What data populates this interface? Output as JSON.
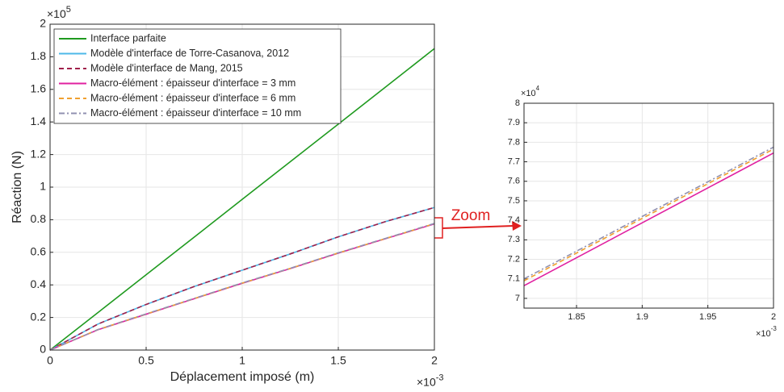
{
  "chart_data": [
    {
      "type": "line",
      "y_label": "Réaction (N)",
      "x_label": "Déplacement imposé (m)",
      "y_exponent_label": {
        "base": "×10",
        "power": "5"
      },
      "x_exponent_label": {
        "base": "×10",
        "power": "-3"
      },
      "annotation": "Zoom",
      "grid": true,
      "legend": "upper left",
      "xlim": [
        0,
        0.002
      ],
      "ylim": [
        0,
        200000
      ],
      "xticks": [
        0,
        {
          "value": 0.0005,
          "label": "0.5"
        },
        {
          "value": 0.001,
          "label": "1"
        },
        {
          "value": 0.0015,
          "label": "1.5"
        },
        {
          "value": 0.002,
          "label": "2"
        }
      ],
      "yticks": [
        0,
        {
          "value": 20000,
          "label": "0.2"
        },
        {
          "value": 40000,
          "label": "0.4"
        },
        {
          "value": 60000,
          "label": "0.6"
        },
        {
          "value": 80000,
          "label": "0.8"
        },
        {
          "value": 100000,
          "label": "1"
        },
        {
          "value": 120000,
          "label": "1.2"
        },
        {
          "value": 140000,
          "label": "1.4"
        },
        {
          "value": 160000,
          "label": "1.6"
        },
        {
          "value": 180000,
          "label": "1.8"
        },
        {
          "value": 200000,
          "label": "2"
        }
      ],
      "x": [
        0,
        0.00025,
        0.0005,
        0.00075,
        0.001,
        0.00125,
        0.0015,
        0.00175,
        0.002
      ],
      "series": [
        {
          "name": "Interface parfaite",
          "color": "#1f9a1f",
          "style": "solid",
          "values": [
            0,
            23100,
            46200,
            69300,
            92500,
            115600,
            138700,
            161800,
            185000
          ]
        },
        {
          "name": "Modèle d'interface de Torre-Casanova, 2012",
          "color": "#4db8e8",
          "style": "solid",
          "values": [
            0,
            16000,
            28000,
            39000,
            49000,
            59000,
            69500,
            79000,
            87500
          ]
        },
        {
          "name": "Modèle d'interface de Mang, 2015",
          "color": "#a0204a",
          "style": "dashed",
          "values": [
            0,
            16000,
            28000,
            39000,
            49000,
            59000,
            69500,
            79000,
            87500
          ]
        },
        {
          "name": "Macro-élément : épaisseur d'interface = 3 mm",
          "color": "#e020a0",
          "style": "solid",
          "values": [
            0,
            12500,
            22000,
            31500,
            41000,
            50000,
            59500,
            68500,
            77400
          ]
        },
        {
          "name": "Macro-élément : épaisseur d'interface = 6 mm",
          "color": "#f0a030",
          "style": "dashed",
          "values": [
            0,
            12600,
            22100,
            31600,
            41100,
            50100,
            59600,
            68600,
            77600
          ]
        },
        {
          "name": "Macro-élément : épaisseur d'interface = 10 mm",
          "color": "#9090b0",
          "style": "dashdot",
          "values": [
            0,
            12600,
            22200,
            31700,
            41200,
            50200,
            59700,
            68700,
            77700
          ]
        }
      ]
    },
    {
      "type": "line",
      "y_exponent_label": {
        "base": "×10",
        "power": "4"
      },
      "x_exponent_label": {
        "base": "×10",
        "power": "-3"
      },
      "grid": true,
      "xlim": [
        0.00181,
        0.002
      ],
      "ylim": [
        69500,
        80000
      ],
      "xticks": [
        {
          "value": 0.00185,
          "label": "1.85"
        },
        {
          "value": 0.0019,
          "label": "1.9"
        },
        {
          "value": 0.00195,
          "label": "1.95"
        },
        {
          "value": 0.002,
          "label": "2"
        }
      ],
      "yticks": [
        {
          "value": 70000,
          "label": "7"
        },
        {
          "value": 71000,
          "label": "7.1"
        },
        {
          "value": 72000,
          "label": "7.2"
        },
        {
          "value": 73000,
          "label": "7.3"
        },
        {
          "value": 74000,
          "label": "7.4"
        },
        {
          "value": 75000,
          "label": "7.5"
        },
        {
          "value": 76000,
          "label": "7.6"
        },
        {
          "value": 77000,
          "label": "7.7"
        },
        {
          "value": 78000,
          "label": "7.8"
        },
        {
          "value": 79000,
          "label": "7.9"
        },
        {
          "value": 80000,
          "label": "8"
        }
      ],
      "x": [
        0.00181,
        0.002
      ],
      "series": [
        {
          "color": "#e020a0",
          "style": "solid",
          "values": [
            70650,
            77450
          ]
        },
        {
          "color": "#f0a030",
          "style": "dashed",
          "values": [
            70900,
            77650
          ]
        },
        {
          "color": "#9090b0",
          "style": "dashdot",
          "values": [
            71000,
            77750
          ]
        }
      ]
    }
  ]
}
